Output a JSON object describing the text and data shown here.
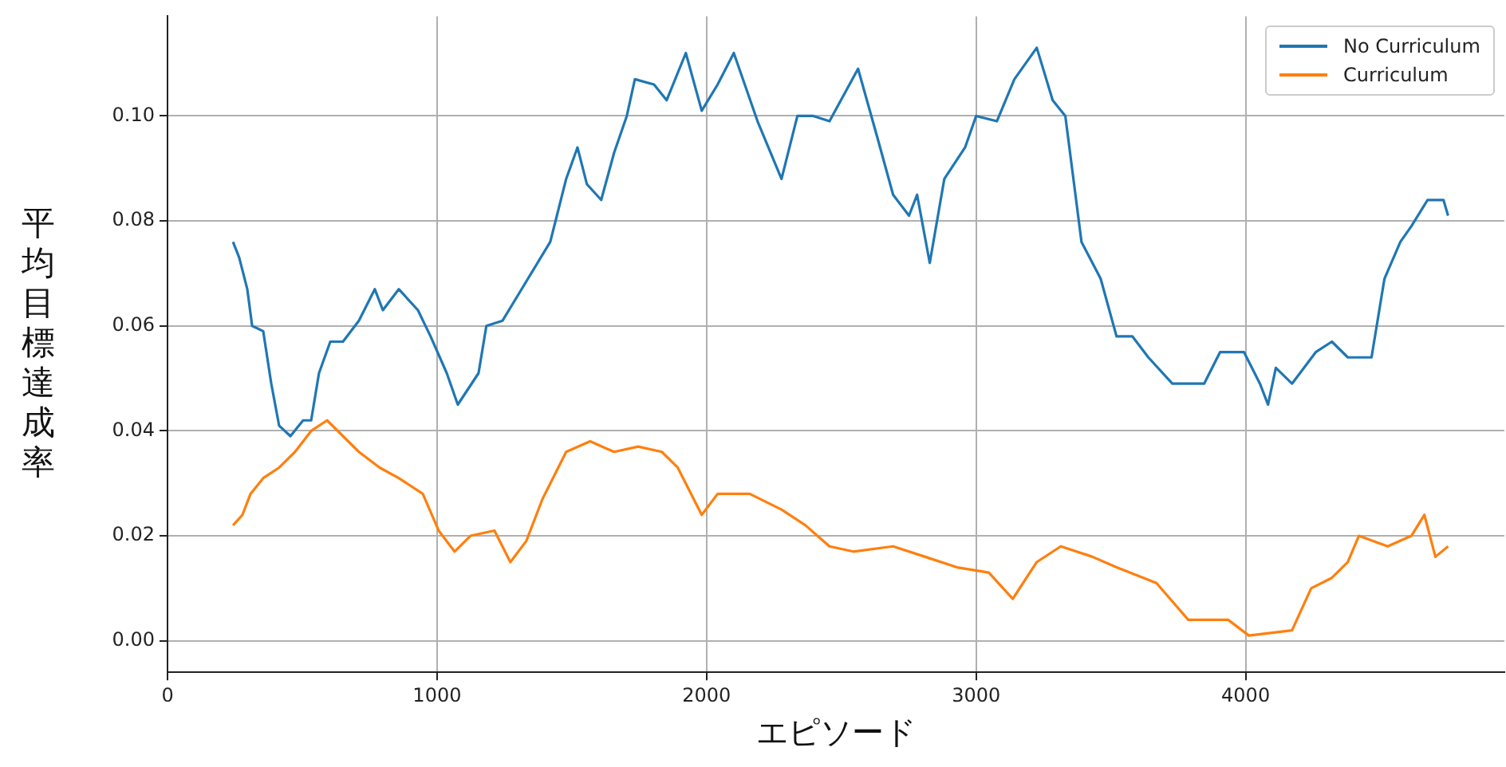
{
  "chart_data": {
    "type": "line",
    "xlabel": "エピソード",
    "ylabel": "平均目標達成率",
    "xlim": [
      0,
      4960
    ],
    "ylim": [
      -0.006,
      0.119
    ],
    "xticks": [
      0,
      1000,
      2000,
      3000,
      4000
    ],
    "yticks": [
      {
        "value": 0,
        "label": "0.00"
      },
      {
        "value": 0.02,
        "label": "0.02"
      },
      {
        "value": 0.04,
        "label": "0.04"
      },
      {
        "value": 0.06,
        "label": "0.06"
      },
      {
        "value": 0.08,
        "label": "0.08"
      },
      {
        "value": 0.1,
        "label": "0.10"
      }
    ],
    "grid": true,
    "legend": "top right",
    "marker": "none",
    "line_style": "solid",
    "series": [
      {
        "name": "No Curriculum",
        "color": "#1f77b4",
        "x": [
          243,
          266,
          296,
          314,
          355,
          385,
          414,
          456,
          503,
          533,
          562,
          604,
          651,
          710,
          769,
          799,
          858,
          929,
          976,
          1036,
          1077,
          1154,
          1183,
          1243,
          1302,
          1420,
          1479,
          1521,
          1556,
          1609,
          1657,
          1704,
          1734,
          1805,
          1852,
          1923,
          1982,
          2041,
          2101,
          2189,
          2278,
          2337,
          2396,
          2456,
          2562,
          2633,
          2692,
          2751,
          2781,
          2828,
          2882,
          2959,
          3000,
          3077,
          3142,
          3225,
          3284,
          3331,
          3391,
          3462,
          3521,
          3580,
          3639,
          3728,
          3846,
          3905,
          3994,
          4053,
          4083,
          4112,
          4172,
          4260,
          4320,
          4379,
          4467,
          4515,
          4574,
          4615,
          4675,
          4734,
          4751
        ],
        "values": [
          0.076,
          0.073,
          0.067,
          0.06,
          0.059,
          0.049,
          0.041,
          0.039,
          0.042,
          0.042,
          0.051,
          0.057,
          0.057,
          0.061,
          0.067,
          0.063,
          0.067,
          0.063,
          0.058,
          0.051,
          0.045,
          0.051,
          0.06,
          0.061,
          0.066,
          0.076,
          0.088,
          0.094,
          0.087,
          0.084,
          0.093,
          0.1,
          0.107,
          0.106,
          0.103,
          0.112,
          0.101,
          0.106,
          0.112,
          0.099,
          0.088,
          0.1,
          0.1,
          0.099,
          0.109,
          0.096,
          0.085,
          0.081,
          0.085,
          0.072,
          0.088,
          0.094,
          0.1,
          0.099,
          0.107,
          0.113,
          0.103,
          0.1,
          0.076,
          0.069,
          0.058,
          0.058,
          0.054,
          0.049,
          0.049,
          0.055,
          0.055,
          0.049,
          0.045,
          0.052,
          0.049,
          0.055,
          0.057,
          0.054,
          0.054,
          0.069,
          0.076,
          0.079,
          0.084,
          0.084,
          0.081
        ]
      },
      {
        "name": "Curriculum",
        "color": "#ff7f0e",
        "x": [
          243,
          278,
          308,
          355,
          414,
          473,
          533,
          592,
          651,
          710,
          787,
          858,
          947,
          1006,
          1065,
          1124,
          1213,
          1272,
          1331,
          1391,
          1479,
          1568,
          1657,
          1746,
          1834,
          1893,
          1982,
          2041,
          2160,
          2278,
          2367,
          2456,
          2544,
          2692,
          2811,
          2929,
          3047,
          3136,
          3225,
          3314,
          3432,
          3521,
          3669,
          3787,
          3935,
          4012,
          4172,
          4243,
          4320,
          4379,
          4420,
          4527,
          4615,
          4663,
          4704,
          4751
        ],
        "values": [
          0.022,
          0.024,
          0.028,
          0.031,
          0.033,
          0.036,
          0.04,
          0.042,
          0.039,
          0.036,
          0.033,
          0.031,
          0.028,
          0.021,
          0.017,
          0.02,
          0.021,
          0.015,
          0.019,
          0.027,
          0.036,
          0.038,
          0.036,
          0.037,
          0.036,
          0.033,
          0.024,
          0.028,
          0.028,
          0.025,
          0.022,
          0.018,
          0.017,
          0.018,
          0.016,
          0.014,
          0.013,
          0.008,
          0.015,
          0.018,
          0.016,
          0.014,
          0.011,
          0.004,
          0.004,
          0.001,
          0.002,
          0.01,
          0.012,
          0.015,
          0.02,
          0.018,
          0.02,
          0.024,
          0.016,
          0.018
        ]
      }
    ]
  }
}
